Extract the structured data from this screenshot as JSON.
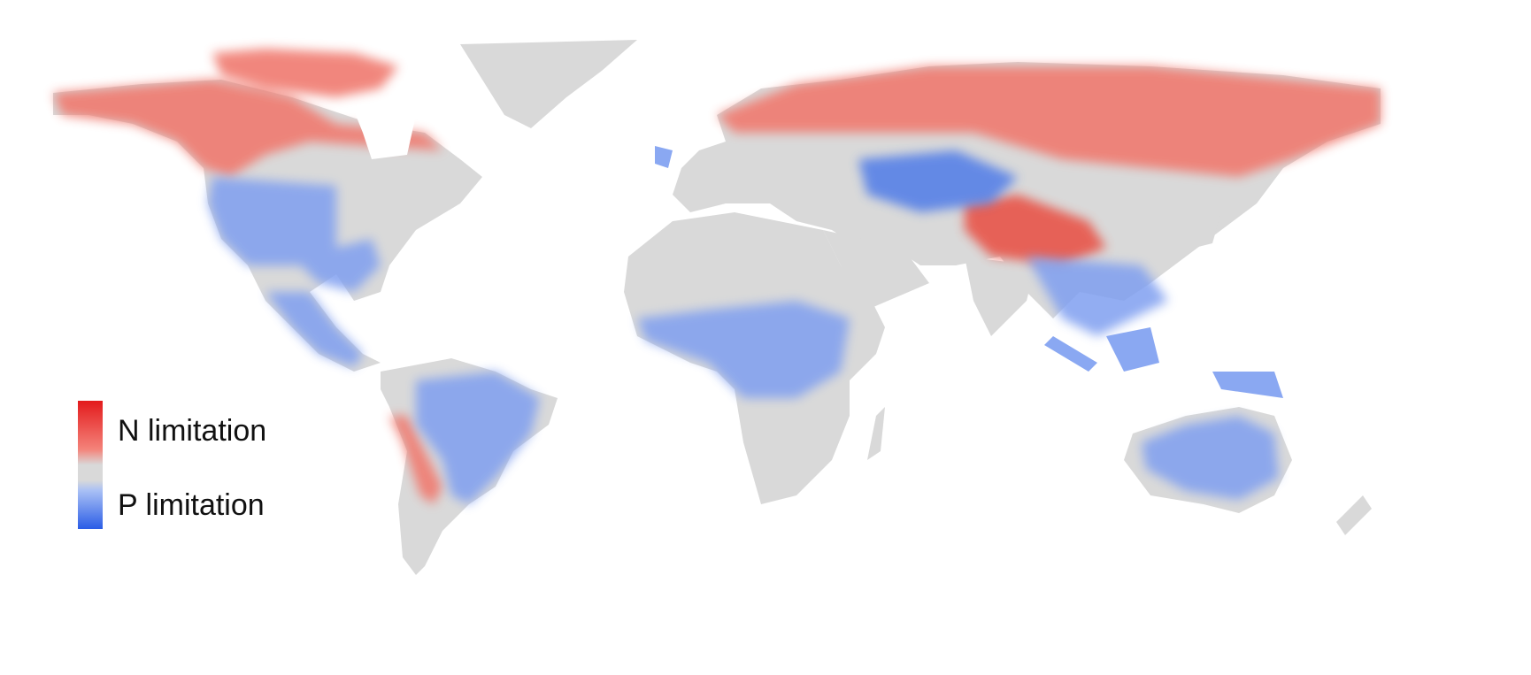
{
  "map": {
    "projection": "equirectangular world map",
    "base_land_color": "#d9d9d9",
    "ocean_color": "#ffffff"
  },
  "legend": {
    "top_label": "N limitation",
    "bottom_label": "P limitation",
    "colors": {
      "n_strong": "#e31a1c",
      "n_mid": "#f4837a",
      "neutral": "#d9d9d9",
      "p_mid": "#a9c0f5",
      "p_strong": "#2a5ce6"
    }
  }
}
